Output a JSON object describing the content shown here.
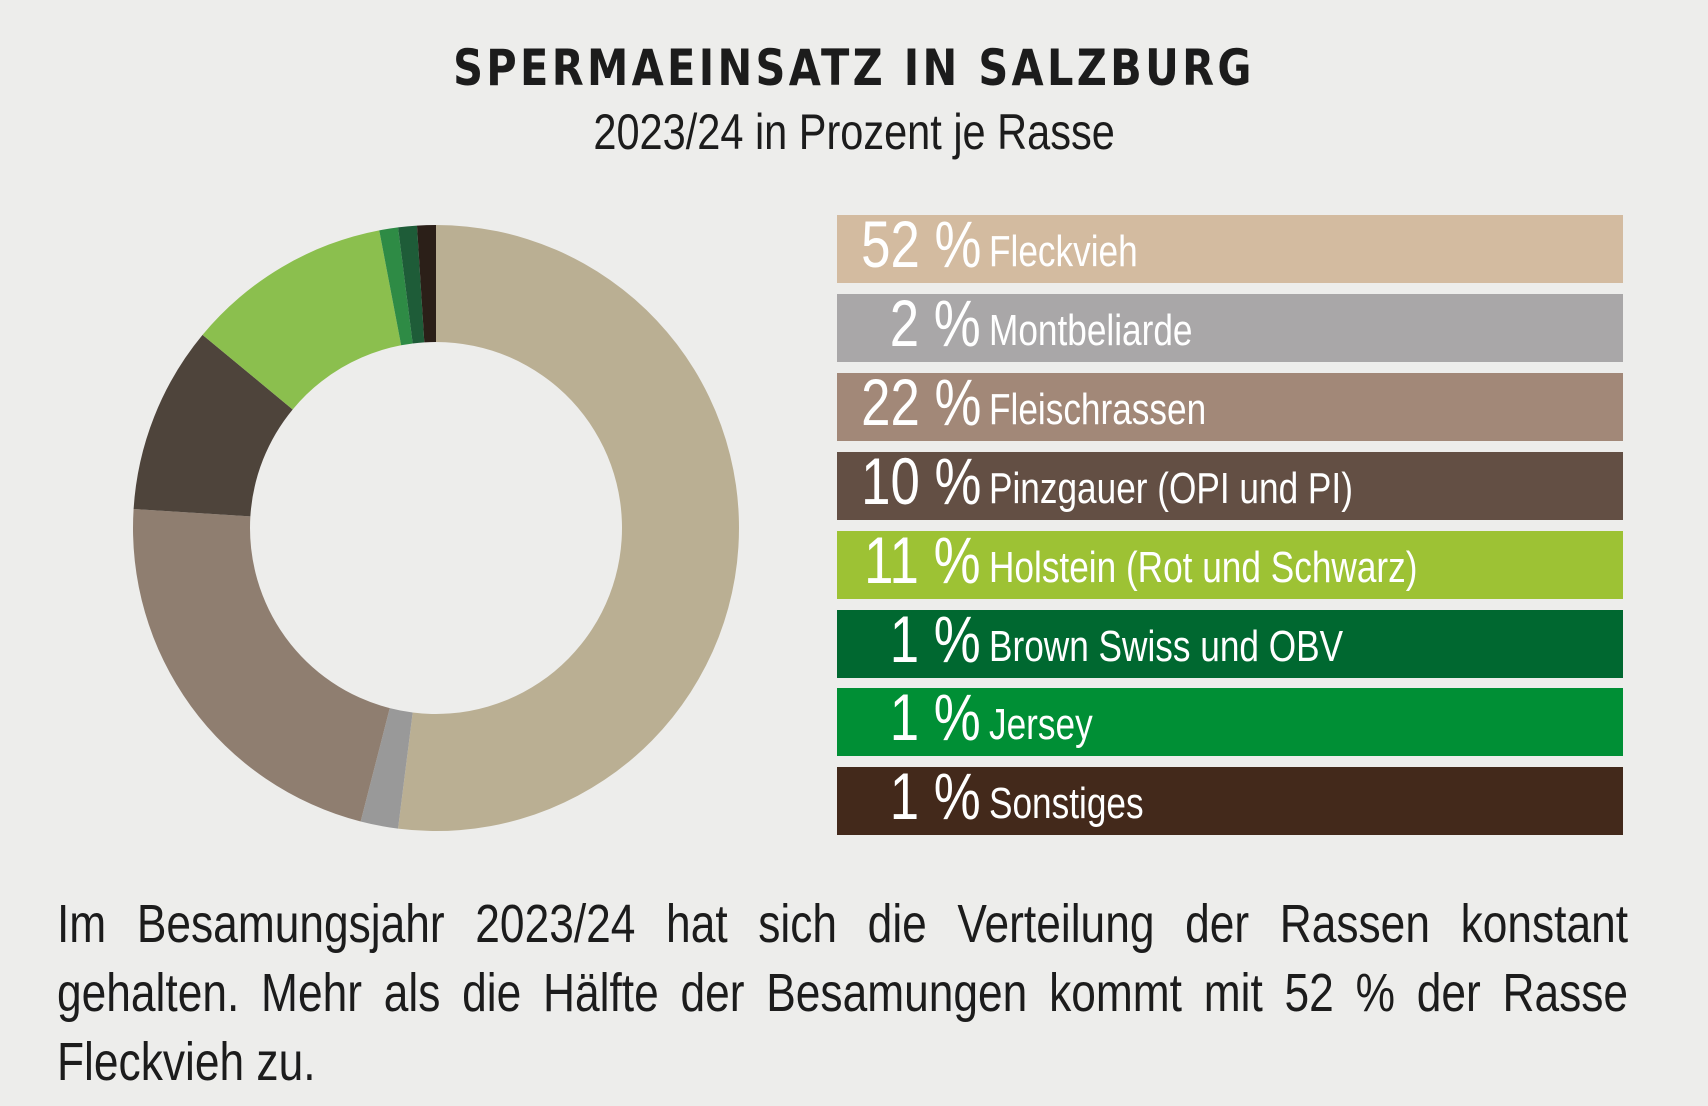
{
  "header": {
    "title": "SPERMAEINSATZ IN SALZBURG",
    "subtitle": "2023/24 in Prozent je Rasse"
  },
  "chart_data": {
    "type": "pie",
    "variant": "donut",
    "title": "SPERMAEINSATZ IN SALZBURG",
    "subtitle": "2023/24 in Prozent je Rasse",
    "unit": "%",
    "start_angle": "12 o'clock",
    "direction": "clockwise",
    "legend_position": "right",
    "slices": [
      {
        "label": "Fleckvieh",
        "value": 52,
        "pct_text": "52 %",
        "color": "#BAAF93",
        "legend_color": "#D3BBA0"
      },
      {
        "label": "Montbeliarde",
        "value": 2,
        "pct_text": "2 %",
        "color": "#999999",
        "legend_color": "#A9A7A8"
      },
      {
        "label": "Fleischrassen",
        "value": 22,
        "pct_text": "22 %",
        "color": "#8F7E70",
        "legend_color": "#A28878"
      },
      {
        "label": "Pinzgauer (OPI und PI)",
        "value": 10,
        "pct_text": "10 %",
        "color": "#4E443B",
        "legend_color": "#634F44"
      },
      {
        "label": "Holstein (Rot und Schwarz)",
        "value": 11,
        "pct_text": "11 %",
        "color": "#8BBF4E",
        "legend_color": "#9DC234"
      },
      {
        "label": "Brown Swiss und OBV",
        "value": 1,
        "pct_text": "1 %",
        "color": "#1E5C38",
        "legend_color": "#006830"
      },
      {
        "label": "Jersey",
        "value": 1,
        "pct_text": "1 %",
        "color": "#2E8B45",
        "legend_color": "#008F35"
      },
      {
        "label": "Sonstiges",
        "value": 1,
        "pct_text": "1 %",
        "color": "#2B1F18",
        "legend_color": "#43291B"
      }
    ],
    "ring_order": [
      "Fleckvieh",
      "Montbeliarde",
      "Fleischrassen",
      "Pinzgauer (OPI und PI)",
      "Holstein (Rot und Schwarz)",
      "Jersey",
      "Brown Swiss und OBV",
      "Sonstiges"
    ]
  },
  "body_text": {
    "lines": [
      "Im Besamungsjahr 2023/24 hat sich die Verteilung der Rassen konstant",
      "gehalten. Mehr als die Hälfte der Besamungen kommt mit 52 % der Rasse",
      "Fleckvieh zu."
    ]
  },
  "colors": {
    "background": "#EDEDEB",
    "text": "#1C1C1C",
    "legend_text": "#FFFFFF"
  }
}
